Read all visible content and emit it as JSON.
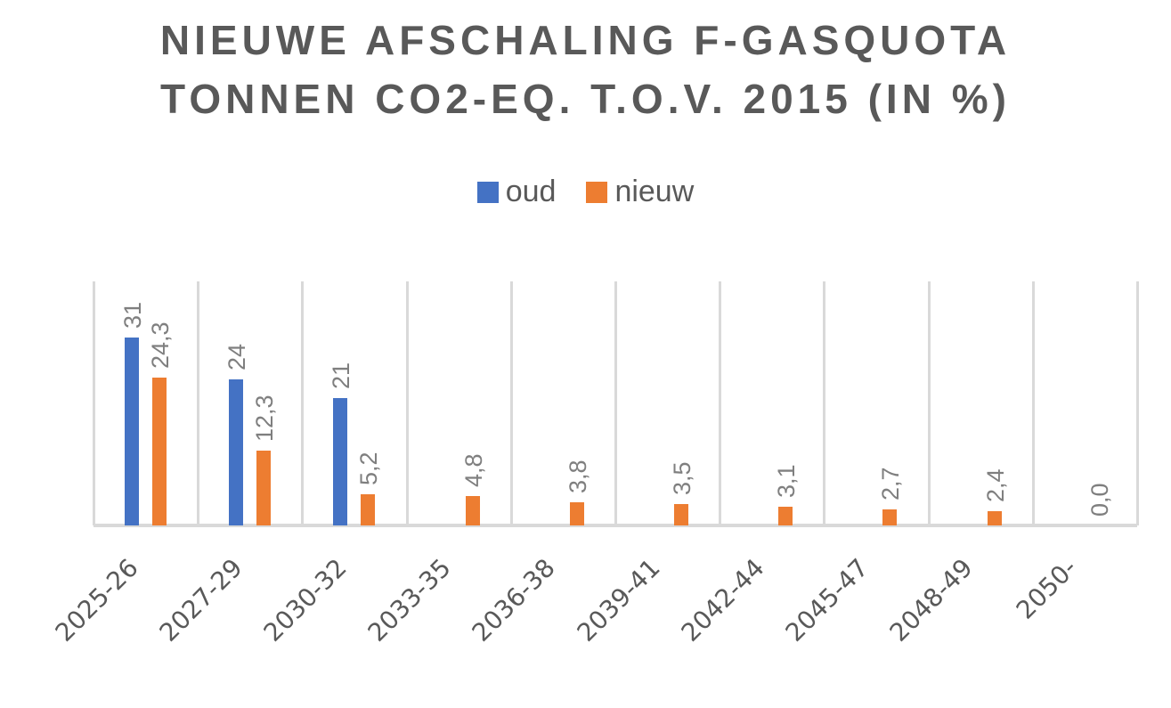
{
  "title": {
    "line1": "NIEUWE AFSCHALING F-GASQUOTA",
    "line2": "TONNEN CO2-EQ. T.O.V. 2015 (IN %)"
  },
  "legend": [
    {
      "label": "oud",
      "color": "#4472C4"
    },
    {
      "label": "nieuw",
      "color": "#ED7D31"
    }
  ],
  "chart_data": {
    "type": "bar",
    "title": "NIEUWE AFSCHALING F-GASQUOTA TONNEN CO2-EQ. T.O.V. 2015 (IN %)",
    "xlabel": "",
    "ylabel": "",
    "categories": [
      "2025-26",
      "2027-29",
      "2030-32",
      "2033-35",
      "2036-38",
      "2039-41",
      "2042-44",
      "2045-47",
      "2048-49",
      "2050-"
    ],
    "series": [
      {
        "name": "oud",
        "color": "#4472C4",
        "values": [
          31,
          24,
          21,
          null,
          null,
          null,
          null,
          null,
          null,
          null
        ],
        "labels": [
          "31",
          "24",
          "21",
          "",
          "",
          "",
          "",
          "",
          "",
          ""
        ]
      },
      {
        "name": "nieuw",
        "color": "#ED7D31",
        "values": [
          24.3,
          12.3,
          5.2,
          4.8,
          3.8,
          3.5,
          3.1,
          2.7,
          2.4,
          0.0
        ],
        "labels": [
          "24,3",
          "12,3",
          "5,2",
          "4,8",
          "3,8",
          "3,5",
          "3,1",
          "2,7",
          "2,4",
          "0,0"
        ]
      }
    ],
    "ylim": [
      0,
      40
    ],
    "grid": "vertical category separators",
    "legend_position": "top",
    "data_labels": "rotated 90°, above bars"
  }
}
